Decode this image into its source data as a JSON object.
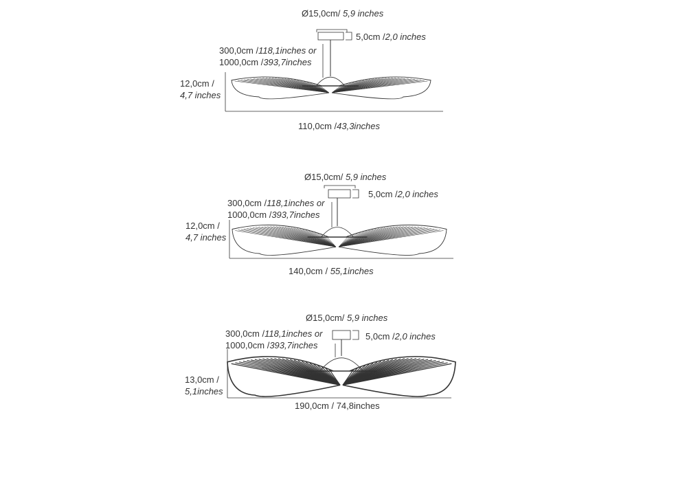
{
  "lamps": [
    {
      "diameter": {
        "cm": "Ø15,0cm/ ",
        "in": "5,9 inches"
      },
      "canopy_height": {
        "cm": "5,0cm /",
        "in": "2,0 inches"
      },
      "cable": {
        "line1_cm": "300,0cm /",
        "line1_in": "118,1inches or",
        "line2_cm": "1000,0cm /",
        "line2_in": "393,7inches"
      },
      "height": {
        "cm": "12,0cm /",
        "in": "4,7 inches"
      },
      "width": {
        "cm": "110,0cm /",
        "in": "43,3inches"
      }
    },
    {
      "diameter": {
        "cm": "Ø15,0cm/ ",
        "in": "5,9 inches"
      },
      "canopy_height": {
        "cm": "5,0cm /",
        "in": "2,0 inches"
      },
      "cable": {
        "line1_cm": "300,0cm /",
        "line1_in": "118,1inches or",
        "line2_cm": "1000,0cm /",
        "line2_in": "393,7inches"
      },
      "height": {
        "cm": "12,0cm /",
        "in": "4,7 inches"
      },
      "width": {
        "cm": "140,0cm / ",
        "in": "55,1inches"
      }
    },
    {
      "diameter": {
        "cm": "Ø15,0cm/ ",
        "in": "5,9 inches"
      },
      "canopy_height": {
        "cm": "5,0cm /",
        "in": "2,0 inches"
      },
      "cable": {
        "line1_cm": "300,0cm /",
        "line1_in": "118,1inches or",
        "line2_cm": "1000,0cm /",
        "line2_in": "393,7inches"
      },
      "height": {
        "cm": "13,0cm /",
        "in": "5,1inches"
      },
      "width": {
        "cm": "190,0cm / 74,8inches",
        "in": ""
      }
    }
  ],
  "colors": {
    "line": "#333333",
    "text": "#333333"
  }
}
